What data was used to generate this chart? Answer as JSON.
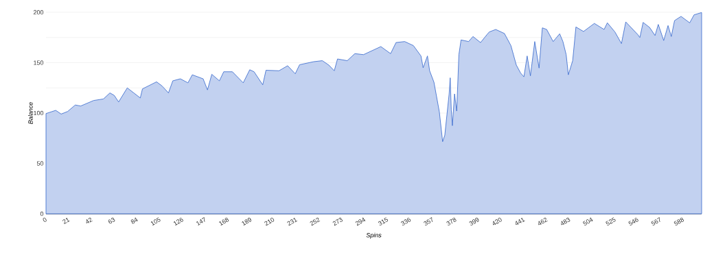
{
  "chart_data": {
    "type": "area",
    "xlabel": "Spins",
    "ylabel": "Balance",
    "xlim": [
      0,
      605
    ],
    "ylim": [
      0,
      200
    ],
    "xticks": [
      0,
      21,
      42,
      63,
      84,
      105,
      126,
      147,
      168,
      189,
      210,
      231,
      252,
      273,
      294,
      315,
      336,
      357,
      378,
      399,
      420,
      441,
      462,
      483,
      504,
      525,
      546,
      567,
      588
    ],
    "yticks": [
      0,
      {
        "value": 25,
        "label": null
      },
      50,
      {
        "value": 75,
        "label": null
      },
      100,
      {
        "value": 125,
        "label": null
      },
      150,
      {
        "value": 175,
        "label": null
      },
      200
    ],
    "grid": "y",
    "series": [
      {
        "color": "#3366cc",
        "x": [
          0,
          9,
          14,
          20,
          27,
          32,
          44,
          53,
          59,
          63,
          67,
          75,
          81,
          87,
          89,
          102,
          107,
          113,
          117,
          124,
          131,
          135,
          145,
          149,
          153,
          160,
          164,
          172,
          182,
          188,
          192,
          200,
          203,
          215,
          223,
          230,
          234,
          247,
          255,
          261,
          266,
          269,
          278,
          285,
          293,
          309,
          318,
          323,
          331,
          339,
          346,
          348,
          352,
          354,
          358,
          363,
          366,
          368,
          372,
          373,
          374,
          375,
          377,
          379,
          381,
          383,
          390,
          394,
          401,
          407,
          409,
          415,
          423,
          429,
          434,
          438,
          441,
          444,
          447,
          451,
          455,
          458,
          462,
          468,
          474,
          477,
          480,
          482,
          486,
          489,
          496,
          506,
          515,
          518,
          525,
          531,
          535,
          546,
          548,
          551,
          557,
          562,
          565,
          570,
          574,
          577,
          580,
          586,
          594,
          598,
          605
        ],
        "values": [
          99.5,
          102.7,
          99,
          101.6,
          108,
          107,
          112.5,
          114,
          120,
          117.5,
          111,
          125,
          120,
          115,
          124,
          131,
          127,
          120,
          132,
          134,
          130,
          138,
          134,
          123,
          138.5,
          132,
          141,
          141,
          130,
          143,
          141,
          128,
          142.5,
          142,
          147,
          139,
          148,
          151,
          152,
          147.6,
          142,
          153.7,
          152,
          159,
          158,
          166,
          159,
          170,
          171,
          167,
          156.7,
          145,
          156.7,
          142,
          130.6,
          101,
          71.6,
          78,
          119,
          135,
          103,
          87.5,
          119,
          102,
          158,
          172.6,
          171,
          176,
          170,
          178,
          180.5,
          183,
          179,
          167,
          147.6,
          139.7,
          136,
          156.7,
          137,
          171,
          144.7,
          184.6,
          183,
          171,
          178.7,
          171,
          158,
          138,
          152,
          185.5,
          181,
          189,
          183,
          189.6,
          180.5,
          169,
          190.5,
          178,
          175,
          190,
          185,
          177,
          188,
          172,
          186.9,
          176,
          191.8,
          196,
          189.6,
          197.5,
          199.8
        ]
      }
    ]
  }
}
